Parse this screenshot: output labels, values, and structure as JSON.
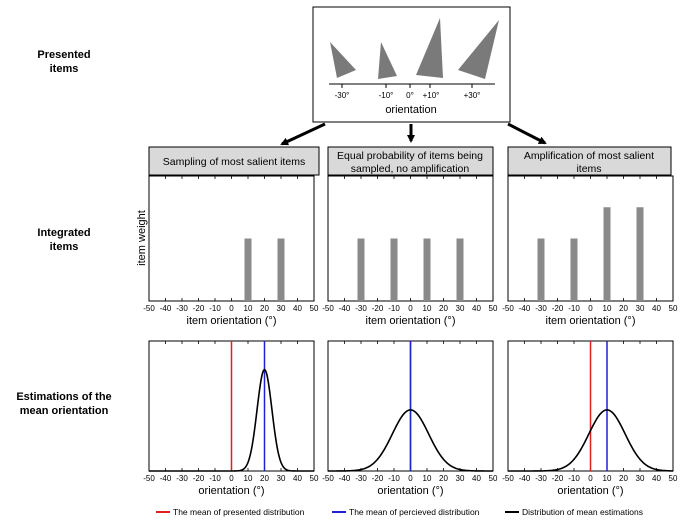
{
  "row_labels": {
    "presented": [
      "Presented",
      "items"
    ],
    "integrated": [
      "Integrated",
      "items"
    ],
    "estimations": [
      "Estimations of the",
      "mean orientation"
    ]
  },
  "presented_panel": {
    "items": [
      {
        "label": "-30°",
        "orientation": -30
      },
      {
        "label": "-10°",
        "orientation": -10
      },
      {
        "label": "+10°",
        "orientation": 10
      },
      {
        "label": "+30°",
        "orientation": 30
      }
    ],
    "zero_label": "0°",
    "axis_label": "orientation"
  },
  "column_headers": [
    [
      "Sampling of most salient items"
    ],
    [
      "Equal probability of items being",
      "sampled, no amplification"
    ],
    [
      "Amplification of most salient",
      "items"
    ]
  ],
  "integrated_ylabel": "item weight",
  "integrated_xlabel": "item orientation (°)",
  "estimation_xlabel": "orientation (°)",
  "x_ticks": [
    "-50",
    "-40",
    "-30",
    "-20",
    "-10",
    "0",
    "10",
    "20",
    "30",
    "40",
    "50"
  ],
  "legend": [
    {
      "label": "The mean of presented distribution",
      "color": "#e02020"
    },
    {
      "label": "The mean of percieved distribution",
      "color": "#2020d0"
    },
    {
      "label": "Distribution of mean estimations",
      "color": "#000000"
    }
  ],
  "chart_data": [
    {
      "type": "bar",
      "panel": "integrated",
      "column": 1,
      "x": [
        10,
        30
      ],
      "values": [
        1,
        1
      ],
      "xlim": [
        -50,
        50
      ],
      "ylim": [
        0,
        2
      ]
    },
    {
      "type": "bar",
      "panel": "integrated",
      "column": 2,
      "x": [
        -30,
        -10,
        10,
        30
      ],
      "values": [
        1,
        1,
        1,
        1
      ],
      "xlim": [
        -50,
        50
      ],
      "ylim": [
        0,
        2
      ]
    },
    {
      "type": "bar",
      "panel": "integrated",
      "column": 3,
      "x": [
        -30,
        -10,
        10,
        30
      ],
      "values": [
        1,
        1,
        1.5,
        1.5
      ],
      "xlim": [
        -50,
        50
      ],
      "ylim": [
        0,
        2
      ]
    },
    {
      "type": "line",
      "panel": "estimation",
      "column": 1,
      "presented_mean": 0,
      "perceived_mean": 20,
      "curve_mean": 20,
      "curve_sd": 4.5,
      "curve_peak": 0.78,
      "xlim": [
        -50,
        50
      ],
      "ylim": [
        0,
        1
      ]
    },
    {
      "type": "line",
      "panel": "estimation",
      "column": 2,
      "presented_mean": 0,
      "perceived_mean": 0,
      "curve_mean": 0,
      "curve_sd": 11,
      "curve_peak": 0.47,
      "xlim": [
        -50,
        50
      ],
      "ylim": [
        0,
        1
      ]
    },
    {
      "type": "line",
      "panel": "estimation",
      "column": 3,
      "presented_mean": 0,
      "perceived_mean": 10,
      "curve_mean": 10,
      "curve_sd": 11,
      "curve_peak": 0.47,
      "xlim": [
        -50,
        50
      ],
      "ylim": [
        0,
        1
      ]
    }
  ]
}
